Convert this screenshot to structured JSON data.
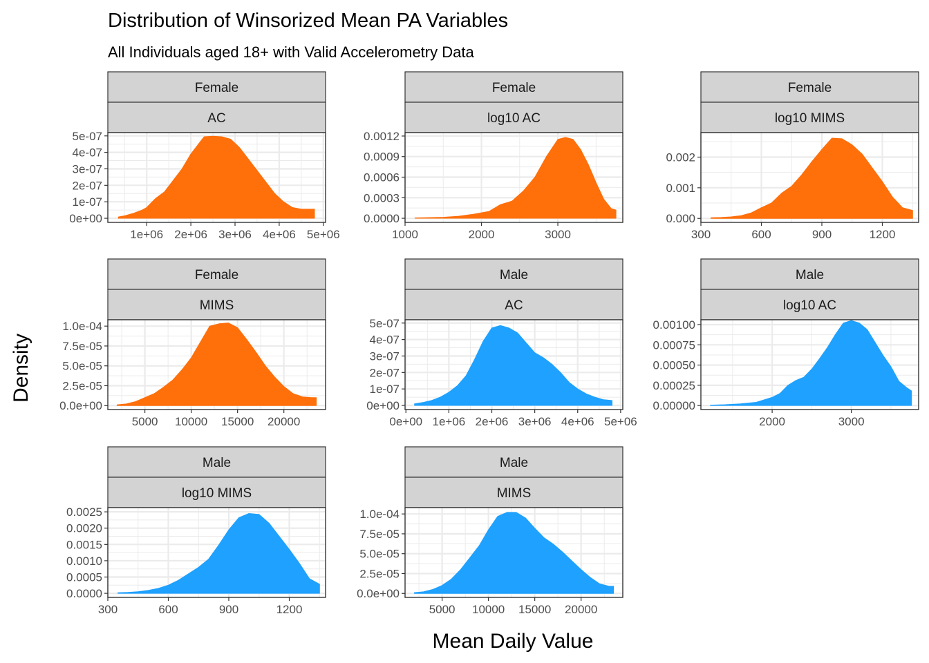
{
  "title": "Distribution of Winsorized Mean PA Variables",
  "subtitle": "All Individuals aged 18+ with Valid Accelerometry Data",
  "xlabel": "Mean Daily Value",
  "ylabel": "Density",
  "colors": {
    "Female": "#ff6f0a",
    "Male": "#1ea1ff",
    "strip_fill": "#d3d3d3",
    "grid": "#ebebeb",
    "frame": "#333333"
  },
  "chart_data": [
    {
      "type": "area",
      "sex": "Female",
      "variable": "AC",
      "xlim": [
        120000,
        5050000
      ],
      "ylim": [
        -2.5e-08,
        5.2e-07
      ],
      "xticks": [
        1000000,
        2000000,
        3000000,
        4000000,
        5000000
      ],
      "xtick_labels": [
        "1e+06",
        "2e+06",
        "3e+06",
        "4e+06",
        "5e+06"
      ],
      "yticks": [
        0,
        1e-07,
        2e-07,
        3e-07,
        4e-07,
        5e-07
      ],
      "ytick_labels": [
        "0e+00",
        "1e-07",
        "2e-07",
        "3e-07",
        "4e-07",
        "5e-07"
      ],
      "x": [
        360000,
        500000,
        700000,
        900000,
        1000000,
        1200000,
        1400000,
        1600000,
        1800000,
        2000000,
        2200000,
        2300000,
        2500000,
        2700000,
        2900000,
        3100000,
        3300000,
        3500000,
        3700000,
        3900000,
        4100000,
        4300000,
        4500000,
        4700000,
        4800000
      ],
      "y": [
        8e-09,
        1.5e-08,
        3e-08,
        5e-08,
        6.5e-08,
        1.2e-07,
        1.6e-07,
        2.3e-07,
        3e-07,
        3.9e-07,
        4.6e-07,
        4.95e-07,
        4.98e-07,
        4.95e-07,
        4.8e-07,
        4.3e-07,
        3.6e-07,
        2.9e-07,
        2.2e-07,
        1.5e-07,
        1e-07,
        6.5e-08,
        5.5e-08,
        5.5e-08,
        5.5e-08
      ]
    },
    {
      "type": "area",
      "sex": "Female",
      "variable": "log10 AC",
      "xlim": [
        1000,
        3850
      ],
      "ylim": [
        -6e-05,
        0.00125
      ],
      "xticks": [
        1000,
        2000,
        3000
      ],
      "xtick_labels": [
        "1000",
        "2000",
        "3000"
      ],
      "yticks": [
        0,
        0.0003,
        0.0006,
        0.0009,
        0.0012
      ],
      "ytick_labels": [
        "0.0000",
        "0.0003",
        "0.0006",
        "0.0009",
        "0.0012"
      ],
      "x": [
        1130,
        1300,
        1500,
        1700,
        1900,
        2100,
        2250,
        2400,
        2550,
        2700,
        2850,
        3000,
        3100,
        3200,
        3300,
        3400,
        3500,
        3600,
        3700,
        3760
      ],
      "y": [
        5e-06,
        1e-05,
        1.5e-05,
        3e-05,
        6e-05,
        0.0001,
        0.0002,
        0.00025,
        0.0004,
        0.0006,
        0.0009,
        0.00115,
        0.00118,
        0.00115,
        0.001,
        0.00078,
        0.00052,
        0.00028,
        0.00014,
        0.00012
      ]
    },
    {
      "type": "area",
      "sex": "Female",
      "variable": "log10 MIMS",
      "xlim": [
        300,
        1380
      ],
      "ylim": [
        -0.00013,
        0.0028
      ],
      "xticks": [
        300,
        600,
        900,
        1200
      ],
      "xtick_labels": [
        "300",
        "600",
        "900",
        "1200"
      ],
      "yticks": [
        0,
        0.001,
        0.002
      ],
      "ytick_labels": [
        "0.000",
        "0.001",
        "0.002"
      ],
      "x": [
        350,
        400,
        450,
        500,
        550,
        600,
        650,
        700,
        750,
        800,
        850,
        900,
        950,
        1000,
        1050,
        1100,
        1150,
        1200,
        1250,
        1300,
        1350
      ],
      "y": [
        2e-05,
        3e-05,
        5e-05,
        9e-05,
        0.00018,
        0.00035,
        0.0005,
        0.00082,
        0.00105,
        0.00142,
        0.00185,
        0.00225,
        0.00262,
        0.0026,
        0.0024,
        0.0021,
        0.00165,
        0.0012,
        0.0007,
        0.00035,
        0.00026
      ]
    },
    {
      "type": "area",
      "sex": "Female",
      "variable": "MIMS",
      "xlim": [
        1000,
        24500
      ],
      "ylim": [
        -5e-06,
        0.000108
      ],
      "xticks": [
        5000,
        10000,
        15000,
        20000
      ],
      "xtick_labels": [
        "5000",
        "10000",
        "15000",
        "20000"
      ],
      "yticks": [
        0,
        2.5e-05,
        5e-05,
        7.5e-05,
        0.0001
      ],
      "ytick_labels": [
        "0.0e+00",
        "2.5e-05",
        "5.0e-05",
        "7.5e-05",
        "1.0e-04"
      ],
      "x": [
        2000,
        3000,
        4000,
        5000,
        6000,
        7000,
        8000,
        9000,
        10000,
        11000,
        12000,
        13000,
        14000,
        15000,
        16000,
        17000,
        18000,
        19000,
        20000,
        21000,
        22000,
        23000,
        23500
      ],
      "y": [
        1e-06,
        2e-06,
        5e-06,
        1e-05,
        1.5e-05,
        2.3e-05,
        3.2e-05,
        4.5e-05,
        6e-05,
        8e-05,
        0.0001,
        0.000103,
        0.000104,
        9.8e-05,
        8.3e-05,
        6.7e-05,
        5e-05,
        3.6e-05,
        2.4e-05,
        1.5e-05,
        1.1e-05,
        1e-05,
        1e-05
      ]
    },
    {
      "type": "area",
      "sex": "Male",
      "variable": "AC",
      "xlim": [
        -20000,
        5050000
      ],
      "ylim": [
        -2.5e-08,
        5.2e-07
      ],
      "xticks": [
        0,
        1000000,
        2000000,
        3000000,
        4000000,
        5000000
      ],
      "xtick_labels": [
        "0e+00",
        "1e+06",
        "2e+06",
        "3e+06",
        "4e+06",
        "5e+06"
      ],
      "yticks": [
        0,
        1e-07,
        2e-07,
        3e-07,
        4e-07,
        5e-07
      ],
      "ytick_labels": [
        "0e+00",
        "1e-07",
        "2e-07",
        "3e-07",
        "4e-07",
        "5e-07"
      ],
      "x": [
        200000,
        400000,
        600000,
        800000,
        1000000,
        1200000,
        1400000,
        1600000,
        1800000,
        2000000,
        2200000,
        2400000,
        2600000,
        2800000,
        3000000,
        3200000,
        3400000,
        3600000,
        3800000,
        4000000,
        4200000,
        4400000,
        4600000,
        4800000
      ],
      "y": [
        1e-08,
        1.8e-08,
        3e-08,
        5e-08,
        8e-08,
        1.2e-07,
        1.8e-07,
        2.8e-07,
        3.9e-07,
        4.7e-07,
        4.85e-07,
        4.7e-07,
        4.4e-07,
        3.8e-07,
        3.2e-07,
        2.9e-07,
        2.5e-07,
        2e-07,
        1.4e-07,
        1e-07,
        7e-08,
        5e-08,
        3.5e-08,
        3e-08
      ]
    },
    {
      "type": "area",
      "sex": "Male",
      "variable": "log10 AC",
      "xlim": [
        1100,
        3850
      ],
      "ylim": [
        -5e-05,
        0.00106
      ],
      "xticks": [
        2000,
        3000
      ],
      "xtick_labels": [
        "2000",
        "3000"
      ],
      "yticks": [
        0,
        0.00025,
        0.0005,
        0.00075,
        0.001
      ],
      "ytick_labels": [
        "0.00000",
        "0.00025",
        "0.00050",
        "0.00075",
        "0.00100"
      ],
      "x": [
        1220,
        1400,
        1600,
        1800,
        2000,
        2100,
        2200,
        2300,
        2400,
        2500,
        2600,
        2700,
        2800,
        2900,
        3000,
        3100,
        3200,
        3300,
        3400,
        3500,
        3600,
        3700,
        3760
      ],
      "y": [
        5e-06,
        1e-05,
        2e-05,
        4e-05,
        0.0001,
        0.00015,
        0.00025,
        0.00031,
        0.00035,
        0.00045,
        0.00058,
        0.00072,
        0.00088,
        0.00102,
        0.00105,
        0.00102,
        0.00094,
        0.00078,
        0.00062,
        0.00048,
        0.0003,
        0.00022,
        0.00018
      ]
    },
    {
      "type": "area",
      "sex": "Male",
      "variable": "log10 MIMS",
      "xlim": [
        300,
        1380
      ],
      "ylim": [
        -0.000125,
        0.00263
      ],
      "xticks": [
        300,
        600,
        900,
        1200
      ],
      "xtick_labels": [
        "300",
        "600",
        "900",
        "1200"
      ],
      "yticks": [
        0,
        0.0005,
        0.001,
        0.0015,
        0.002,
        0.0025
      ],
      "ytick_labels": [
        "0.0000",
        "0.0005",
        "0.0010",
        "0.0015",
        "0.0020",
        "0.0025"
      ],
      "x": [
        350,
        400,
        450,
        500,
        550,
        600,
        650,
        700,
        750,
        800,
        850,
        900,
        950,
        1000,
        1050,
        1100,
        1150,
        1200,
        1250,
        1300,
        1350
      ],
      "y": [
        2e-05,
        3e-05,
        5e-05,
        9e-05,
        0.00015,
        0.00025,
        0.0004,
        0.0006,
        0.0008,
        0.00105,
        0.00148,
        0.00195,
        0.00232,
        0.00245,
        0.00242,
        0.00215,
        0.00175,
        0.00135,
        0.00092,
        0.00045,
        0.00028
      ]
    },
    {
      "type": "area",
      "sex": "Male",
      "variable": "MIMS",
      "xlim": [
        1000,
        24500
      ],
      "ylim": [
        -5e-06,
        0.000108
      ],
      "xticks": [
        5000,
        10000,
        15000,
        20000
      ],
      "xtick_labels": [
        "5000",
        "10000",
        "15000",
        "20000"
      ],
      "yticks": [
        0,
        2.5e-05,
        5e-05,
        7.5e-05,
        0.0001
      ],
      "ytick_labels": [
        "0.0e+00",
        "2.5e-05",
        "5.0e-05",
        "7.5e-05",
        "1.0e-04"
      ],
      "x": [
        2000,
        3000,
        4000,
        5000,
        6000,
        7000,
        8000,
        9000,
        10000,
        11000,
        12000,
        13000,
        14000,
        15000,
        16000,
        17000,
        18000,
        19000,
        20000,
        21000,
        22000,
        23000,
        23500
      ],
      "y": [
        1e-06,
        2e-06,
        5e-06,
        1e-05,
        1.8e-05,
        3e-05,
        4.5e-05,
        6e-05,
        8e-05,
        9.7e-05,
        0.000102,
        0.000102,
        9.5e-05,
        8.2e-05,
        7e-05,
        6.2e-05,
        5.2e-05,
        4.1e-05,
        3e-05,
        2e-05,
        1.2e-05,
        9e-06,
        9e-06
      ]
    }
  ]
}
